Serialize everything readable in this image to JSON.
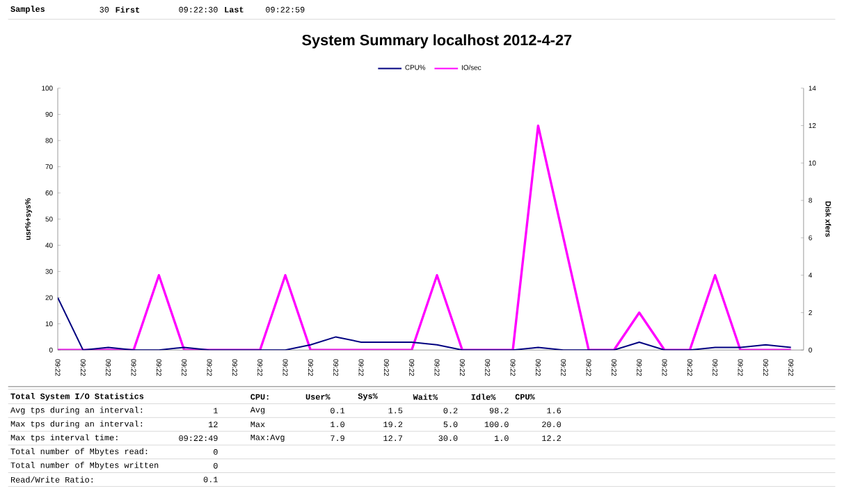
{
  "chart_data": {
    "type": "line",
    "title": "System Summary localhost  2012-4-27",
    "categories": [
      "09:22",
      "09:22",
      "09:22",
      "09:22",
      "09:22",
      "09:22",
      "09:22",
      "09:22",
      "09:22",
      "09:22",
      "09:22",
      "09:22",
      "09:22",
      "09:22",
      "09:22",
      "09:22",
      "09:22",
      "09:22",
      "09:22",
      "09:22",
      "09:22",
      "09:22",
      "09:22",
      "09:22",
      "09:22",
      "09:22",
      "09:22",
      "09:22",
      "09:22",
      "09:22"
    ],
    "series": [
      {
        "name": "CPU%",
        "color": "#000080",
        "values": [
          20,
          0,
          1,
          0,
          0,
          1,
          0,
          0,
          0,
          0,
          2,
          5,
          3,
          3,
          3,
          2,
          0,
          0,
          0,
          1,
          0,
          0,
          0,
          3,
          0,
          0,
          1,
          1,
          2,
          1
        ]
      },
      {
        "name": "IO/sec",
        "color": "#ff00ff",
        "axis": "y2",
        "values": [
          0,
          0,
          0,
          0,
          4,
          0,
          0,
          0,
          0,
          4,
          0,
          0,
          0,
          0,
          0,
          4,
          0,
          0,
          0,
          12,
          6,
          0,
          0,
          2,
          0,
          0,
          4,
          0,
          0,
          0
        ]
      }
    ],
    "ylabel": "usr%+sys%",
    "y2label": "Disk xfers",
    "ylim": [
      0,
      100
    ],
    "yticks": [
      0,
      10,
      20,
      30,
      40,
      50,
      60,
      70,
      80,
      90,
      100
    ],
    "y2lim": [
      0,
      14
    ],
    "y2ticks": [
      0,
      2,
      4,
      6,
      8,
      10,
      12,
      14
    ],
    "legend": "top",
    "grid": false,
    "marker": "none",
    "line_style": "solid",
    "annotations": [
      "Samples",
      "30",
      "First",
      "09:22:30",
      "Last",
      "09:22:59",
      "Total System I/O Statistics",
      "Avg tps during an interval:",
      "1",
      "Max tps during an interval:",
      "12",
      "Max tps interval time:",
      "09:22:49",
      "Total number of Mbytes read:",
      "0",
      "Total number of Mbytes written",
      "0",
      "Read/Write Ratio:",
      "0.1",
      "CPU:",
      "User%",
      "Sys%",
      "Wait%",
      "Idle%",
      "CPU%",
      "Avg",
      "0.1",
      "1.5",
      "0.2",
      "98.2",
      "1.6",
      "Max",
      "1.0",
      "19.2",
      "5.0",
      "100.0",
      "20.0",
      "Max:Avg",
      "7.9",
      "12.7",
      "30.0",
      "1.0",
      "12.2"
    ]
  }
}
